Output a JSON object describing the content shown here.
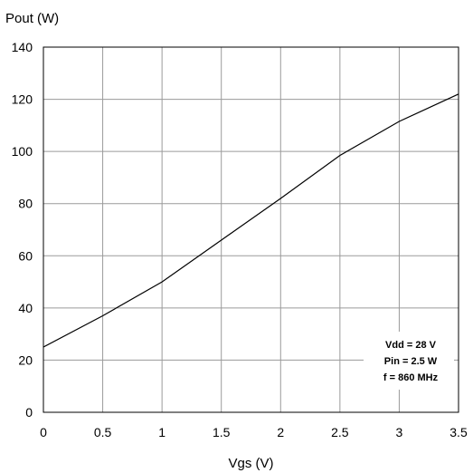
{
  "chart_data": {
    "type": "line",
    "title": "",
    "ylabel": "Pout (W)",
    "xlabel": "Vgs (V)",
    "xlim": [
      0,
      3.5
    ],
    "ylim": [
      0,
      140
    ],
    "x_ticks": [
      "0",
      "0.5",
      "1",
      "1.5",
      "2",
      "2.5",
      "3",
      "3.5"
    ],
    "y_ticks": [
      "0",
      "20",
      "40",
      "60",
      "80",
      "100",
      "120",
      "140"
    ],
    "grid": true,
    "series": [
      {
        "x": [
          0,
          0.5,
          1.0,
          1.5,
          2.0,
          2.5,
          3.0,
          3.5
        ],
        "y": [
          25,
          37,
          50,
          66,
          82,
          98.5,
          111.5,
          122
        ]
      }
    ],
    "annotations": [
      "Vdd = 28 V",
      "Pin = 2.5 W",
      "f = 860 MHz"
    ],
    "annotation_position": "bottom-right"
  }
}
